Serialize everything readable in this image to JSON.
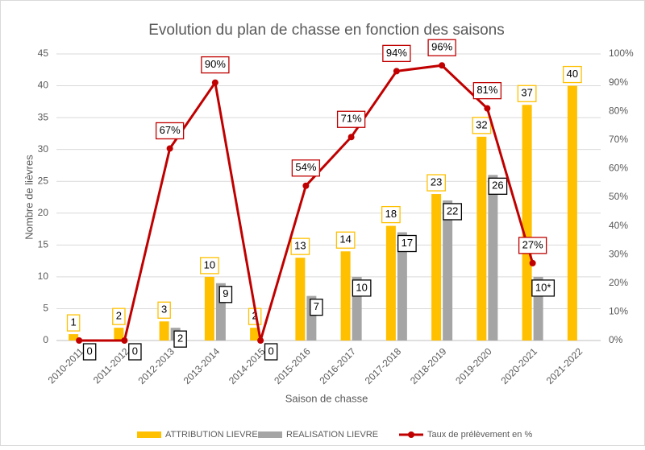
{
  "chart_data": {
    "type": "bar-line",
    "title": "Evolution du plan de chasse en fonction des saisons",
    "xlabel": "Saison de chasse",
    "ylabel": "Nombre de lièvres",
    "categories": [
      "2010-2011",
      "2011-2012",
      "2012-2013",
      "2013-2014",
      "2014-2015",
      "2015-2016",
      "2016-2017",
      "2017-2018",
      "2018-2019",
      "2019-2020",
      "2020-2021",
      "2021-2022"
    ],
    "series": [
      {
        "name": "ATTRIBUTION LIEVRE",
        "color": "#FFC000",
        "type": "bar",
        "values": [
          1,
          2,
          3,
          10,
          2,
          13,
          14,
          18,
          23,
          32,
          37,
          40
        ]
      },
      {
        "name": "REALISATION LIEVRE",
        "color": "#A5A5A5",
        "type": "bar",
        "values": [
          0,
          0,
          2,
          9,
          0,
          7,
          10,
          17,
          22,
          26,
          10,
          null
        ],
        "value_labels": [
          "0",
          "0",
          "2",
          "9",
          "0",
          "7",
          "10",
          "17",
          "22",
          "26",
          "10*",
          null
        ]
      },
      {
        "name": "Taux de prélèvement en %",
        "color": "#C00000",
        "type": "line",
        "axis": "y2",
        "values": [
          0,
          0,
          67,
          90,
          0,
          54,
          71,
          94,
          96,
          81,
          27,
          null
        ],
        "value_labels": [
          null,
          null,
          "67%",
          "90%",
          null,
          "54%",
          "71%",
          "94%",
          "96%",
          "81%",
          "27%",
          null
        ]
      }
    ],
    "ylim": [
      0,
      45
    ],
    "yticks": [
      0,
      5,
      10,
      15,
      20,
      25,
      30,
      35,
      40,
      45
    ],
    "y2lim": [
      0,
      100
    ],
    "y2ticks": [
      {
        "value": 0,
        "label": "0%"
      },
      {
        "value": 10,
        "label": "10%"
      },
      {
        "value": 20,
        "label": "20%"
      },
      {
        "value": 30,
        "label": "30%"
      },
      {
        "value": 40,
        "label": "40%"
      },
      {
        "value": 50,
        "label": "50%"
      },
      {
        "value": 60,
        "label": "60%"
      },
      {
        "value": 70,
        "label": "70%"
      },
      {
        "value": 80,
        "label": "80%"
      },
      {
        "value": 90,
        "label": "90%"
      },
      {
        "value": 100,
        "label": "100%"
      }
    ],
    "grid": true,
    "legend": "bottom"
  }
}
